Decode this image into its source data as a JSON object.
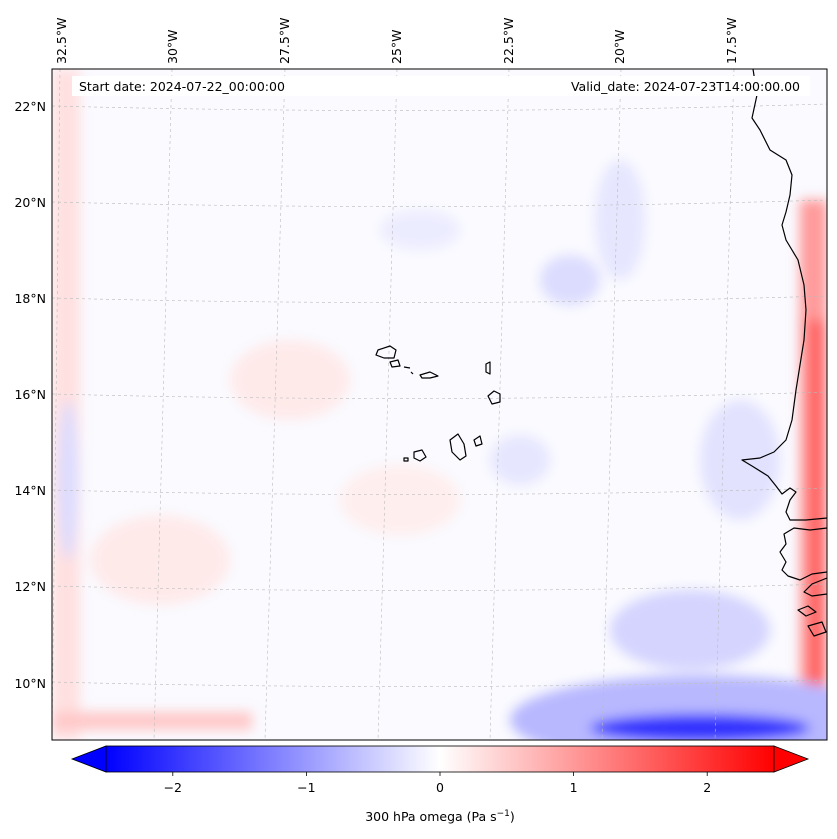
{
  "figure": {
    "start_date_text": "Start date: 2024-07-22_00:00:00",
    "valid_date_text": "Valid_date: 2024-07-23T14:00:00.00"
  },
  "map": {
    "lon_labels": [
      "32.5°W",
      "30°W",
      "27.5°W",
      "25°W",
      "22.5°W",
      "20°W",
      "17.5°W"
    ],
    "lat_labels": [
      "22°N",
      "20°N",
      "18°N",
      "16°N",
      "14°N",
      "12°N",
      "10°N"
    ],
    "gridlines": true,
    "field_colors": {
      "strong_negative": "#0000ff",
      "weak_negative": "#e6e6ff",
      "neutral": "#fafaff",
      "weak_positive": "#ffe6e6",
      "strong_positive": "#ff0000"
    },
    "coastline_color": "#000000"
  },
  "colorbar": {
    "label_main": "300 hPa omega (Pa s",
    "label_exp": "−1",
    "label_close": ")",
    "ticks": [
      "−2",
      "−1",
      "0",
      "1",
      "2"
    ],
    "tick_values": [
      -2,
      -1,
      0,
      1,
      2
    ],
    "range": [
      -2.5,
      2.5
    ],
    "extend": "both",
    "cmap": "bwr",
    "low_color": "#0000ff",
    "mid_color": "#ffffff",
    "high_color": "#ff0000"
  }
}
